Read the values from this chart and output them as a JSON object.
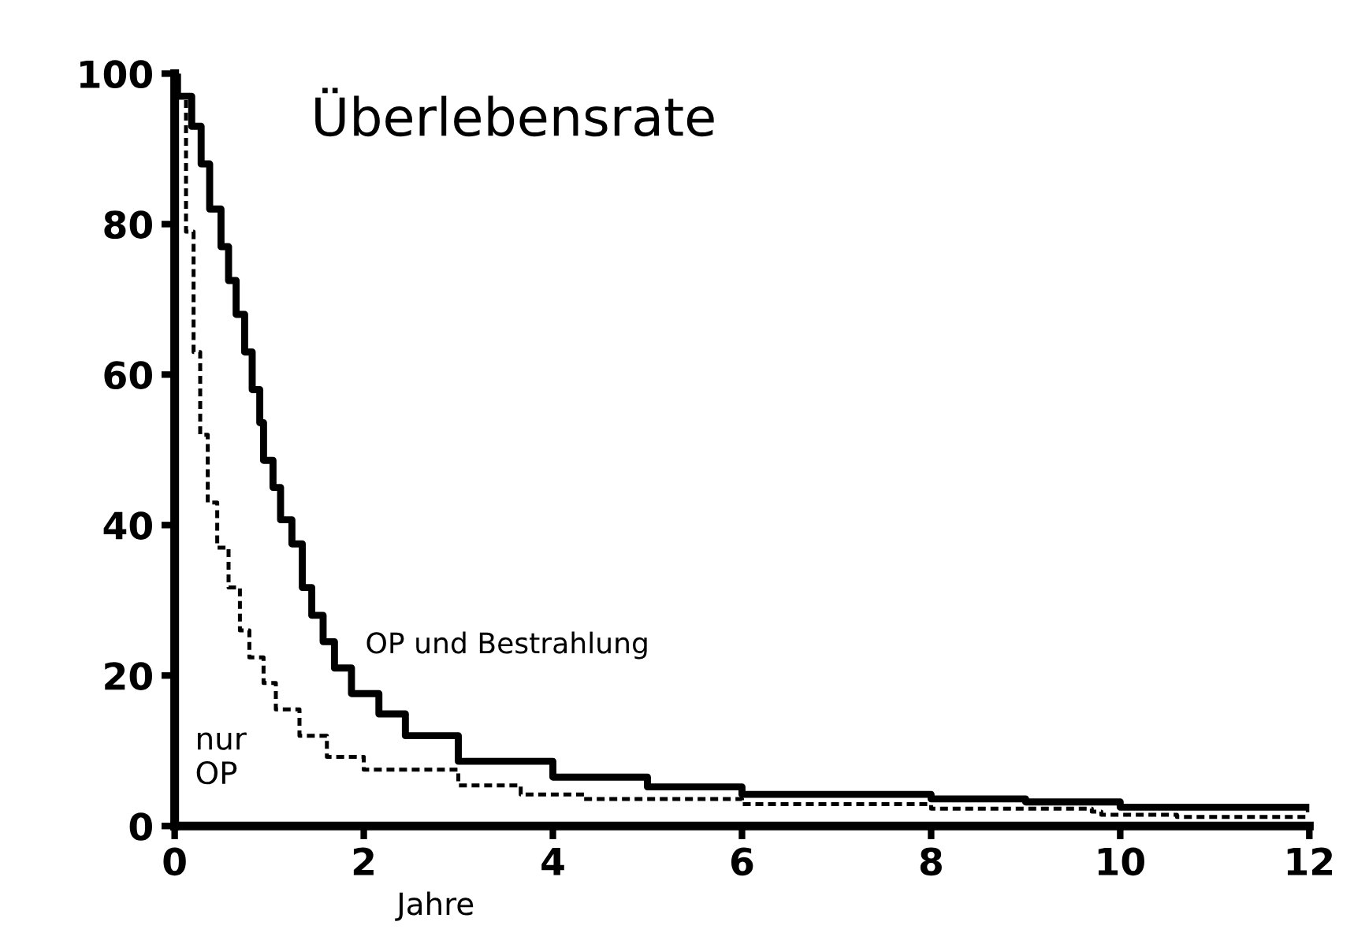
{
  "chart_data": {
    "type": "step",
    "title": "Überlebensrate",
    "xlabel": "Jahre",
    "xlim": [
      0,
      12
    ],
    "ylim": [
      0,
      100
    ],
    "xticks": [
      0,
      2,
      4,
      6,
      8,
      10,
      12
    ],
    "yticks": [
      0,
      20,
      40,
      60,
      80,
      100
    ],
    "grid": false,
    "legend": false,
    "marker": "none",
    "annotations": [
      "OP und Bestrahlung",
      "nur\nOP"
    ],
    "series": [
      {
        "color": "#000000",
        "line_style": "solid",
        "x": [
          0,
          0.03,
          0.18,
          0.28,
          0.37,
          0.49,
          0.57,
          0.65,
          0.74,
          0.82,
          0.9,
          0.94,
          1.04,
          1.12,
          1.24,
          1.35,
          1.45,
          1.57,
          1.69,
          1.87,
          2.16,
          2.44,
          3,
          4,
          5,
          6,
          8,
          9,
          10,
          12
        ],
        "values": [
          100,
          97,
          93,
          88,
          82,
          77,
          72.5,
          68,
          63,
          58,
          53.6,
          48.6,
          45,
          40.7,
          37.5,
          31.7,
          28,
          24.5,
          21,
          17.6,
          14.9,
          12,
          8.6,
          6.5,
          5.2,
          4.2,
          3.6,
          3.2,
          2.5,
          2.3
        ]
      },
      {
        "color": "#000000",
        "line_style": "dotted",
        "x": [
          0,
          0.03,
          0.12,
          0.2,
          0.27,
          0.35,
          0.45,
          0.57,
          0.69,
          0.79,
          0.94,
          1.07,
          1.32,
          1.61,
          2,
          3,
          3.66,
          4.33,
          6,
          8,
          9.7,
          9.8,
          10.6,
          12
        ],
        "values": [
          100,
          97,
          79,
          63,
          52,
          43,
          37,
          31.7,
          26,
          22.4,
          19,
          15.5,
          12,
          9.2,
          7.5,
          5.4,
          4.2,
          3.6,
          2.9,
          2.3,
          1.9,
          1.5,
          1.2,
          1.2
        ]
      }
    ]
  }
}
